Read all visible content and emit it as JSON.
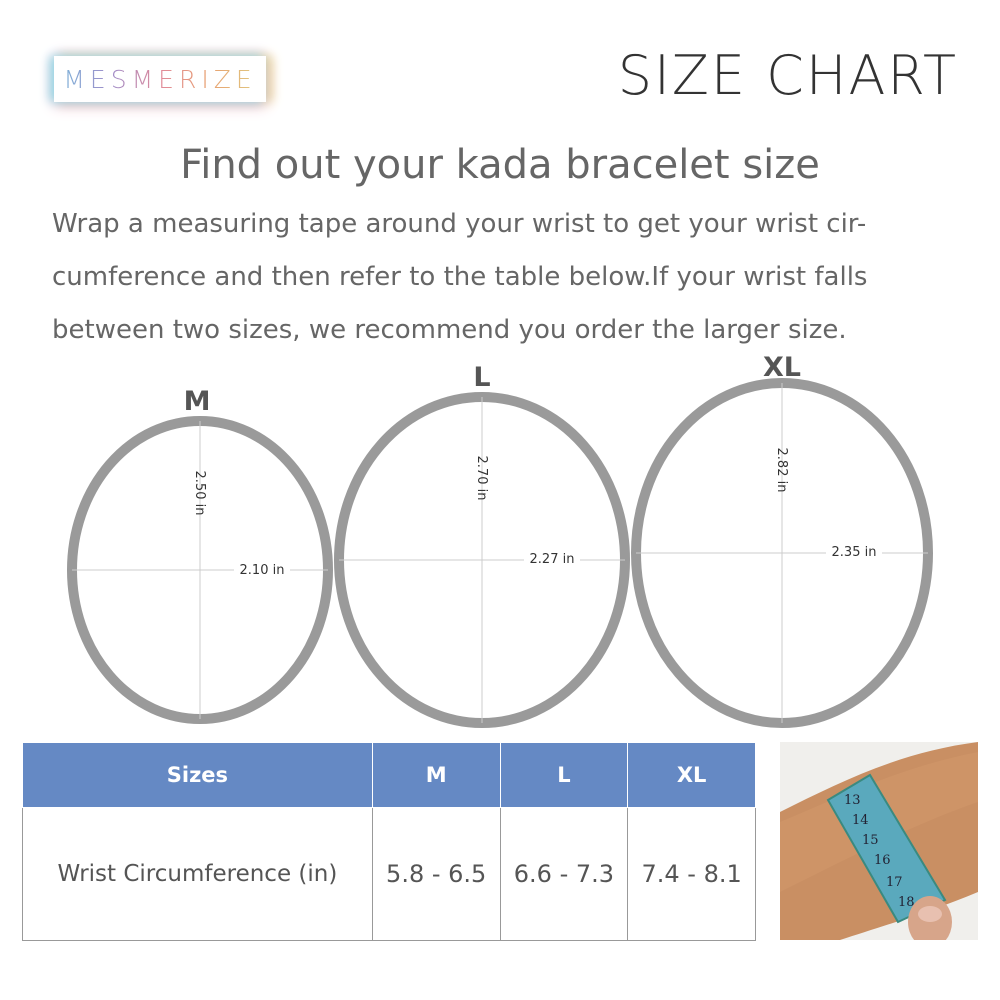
{
  "brand": {
    "logo": "MESMERIZE"
  },
  "title": "SIZE CHART",
  "heading": "Find out your kada bracelet size",
  "description": "Wrap a measuring tape around your wrist to get your wrist cir-cumference and then refer to the table below.If your wrist falls between two sizes, we recommend you order the larger size.",
  "bracelets": [
    {
      "size": "M",
      "height": "2.50 in",
      "width": "2.10 in"
    },
    {
      "size": "L",
      "height": "2.70 in",
      "width": "2.27 in"
    },
    {
      "size": "XL",
      "height": "2.82 in",
      "width": "2.35 in"
    }
  ],
  "table": {
    "headers": [
      "Sizes",
      "M",
      "L",
      "XL"
    ],
    "row_label": "Wrist Circumference (in)",
    "values": [
      "5.8 - 6.5",
      "6.6 - 7.3",
      "7.4 - 8.1"
    ]
  },
  "photo": {
    "tape_numbers": [
      "13",
      "14",
      "15",
      "16",
      "17",
      "18"
    ]
  },
  "colors": {
    "header": "#6589c4",
    "ring": "#9a9a9a"
  }
}
